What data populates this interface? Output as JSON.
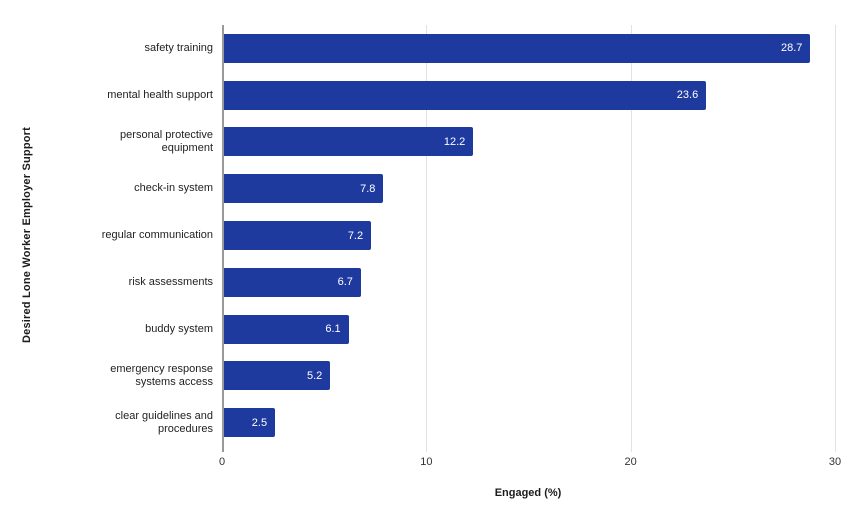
{
  "chart_data": {
    "type": "bar",
    "orientation": "horizontal",
    "title": "",
    "xlabel": "Engaged (%)",
    "ylabel": "Desired Lone Worker Employer Support",
    "categories": [
      "safety training",
      "mental health support",
      "personal protective equipment",
      "check-in system",
      "regular communication",
      "risk assessments",
      "buddy system",
      "emergency response systems access",
      "clear guidelines and procedures"
    ],
    "values": [
      28.7,
      23.6,
      12.2,
      7.8,
      7.2,
      6.7,
      6.1,
      5.2,
      2.5
    ],
    "value_labels": [
      "28.7",
      "23.6",
      "12.2",
      "7.8",
      "7.2",
      "6.7",
      "6.1",
      "5.2",
      "2.5"
    ],
    "xlim": [
      0,
      30
    ],
    "xticks": [
      0,
      10,
      20,
      30
    ],
    "xtick_labels": [
      "0",
      "10",
      "20",
      "30"
    ],
    "grid": "vertical",
    "legend": "none",
    "colors": {
      "bar": "#1f3a9e",
      "value_label": "#ffffff",
      "gridline": "#e2e2e2",
      "axis_line": "#999999",
      "label_text": "#1f1f1f"
    }
  }
}
